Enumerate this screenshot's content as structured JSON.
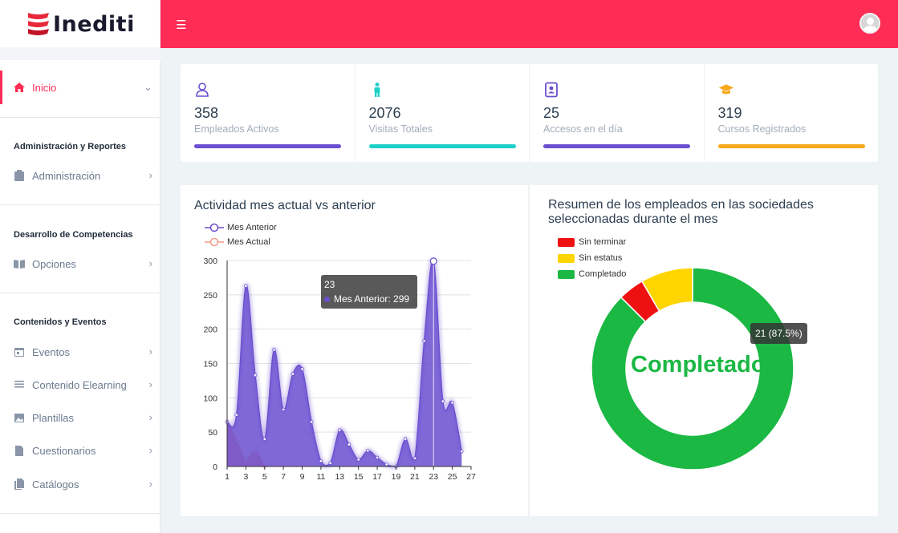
{
  "brand": {
    "name": "Inediti"
  },
  "sidebar": {
    "active": {
      "label": "Inicio"
    },
    "sections": [
      {
        "heading": "Administración y Reportes"
      },
      {
        "heading": "Desarrollo de Competencias"
      },
      {
        "heading": "Contenidos y Eventos"
      }
    ],
    "items": {
      "administracion": "Administración",
      "opciones": "Opciones",
      "eventos": "Eventos",
      "contenido": "Contenido Elearning",
      "plantillas": "Plantillas",
      "cuestionarios": "Cuestionarios",
      "catalogos": "Catálogos"
    }
  },
  "stats": [
    {
      "value": "358",
      "label": "Empleados Activos",
      "color": "#6a4fd0",
      "icon": "user-icon"
    },
    {
      "value": "2076",
      "label": "Visitas Totales",
      "color": "#1dd1c8",
      "icon": "person-icon"
    },
    {
      "value": "25",
      "label": "Accesos en el día",
      "color": "#6a4fd0",
      "icon": "contact-book-icon"
    },
    {
      "value": "319",
      "label": "Cursos Registrados",
      "color": "#f7a81b",
      "icon": "graduation-cap-icon"
    }
  ],
  "activity": {
    "title": "Actividad mes actual vs anterior",
    "tooltip": {
      "header": "23",
      "text": "Mes Anterior: 299"
    }
  },
  "summary": {
    "title": "Resumen de los empleados en las sociedades seleccionadas durante el mes",
    "tooltip": "21 (87.5%)",
    "center_label": "Completado"
  },
  "chart_data": [
    {
      "type": "area",
      "x": [
        1,
        2,
        3,
        4,
        5,
        6,
        7,
        8,
        9,
        10,
        11,
        12,
        13,
        14,
        15,
        16,
        17,
        18,
        19,
        20,
        21,
        22,
        23,
        24,
        25,
        26,
        27
      ],
      "series": [
        {
          "name": "Mes Anterior",
          "color": "#6a4fd0",
          "values": [
            65,
            75,
            263,
            133,
            40,
            170,
            83,
            135,
            142,
            65,
            8,
            5,
            53,
            32,
            10,
            23,
            13,
            3,
            0,
            40,
            12,
            183,
            299,
            95,
            93,
            22,
            null
          ]
        },
        {
          "name": "Mes Actual",
          "color": "#f79a8c",
          "values": [
            65,
            38,
            10,
            22,
            0,
            null,
            null,
            null,
            null,
            null,
            null,
            null,
            null,
            null,
            null,
            null,
            null,
            null,
            null,
            null,
            null,
            null,
            null,
            null,
            null,
            null,
            null
          ]
        }
      ],
      "ylim": [
        0,
        300
      ],
      "yticks": [
        0,
        50,
        100,
        150,
        200,
        250,
        300
      ],
      "xticks": [
        1,
        3,
        5,
        7,
        9,
        11,
        13,
        15,
        17,
        19,
        21,
        23,
        25,
        27
      ],
      "grid": true,
      "legend_position": "top-left"
    },
    {
      "type": "pie",
      "donut": true,
      "slices": [
        {
          "label": "Sin terminar",
          "value": 1,
          "color": "#ee1111"
        },
        {
          "label": "Sin estatus",
          "value": 2,
          "color": "#ffd500"
        },
        {
          "label": "Completado",
          "value": 21,
          "color": "#1bb844"
        }
      ],
      "legend_position": "top-left"
    }
  ]
}
